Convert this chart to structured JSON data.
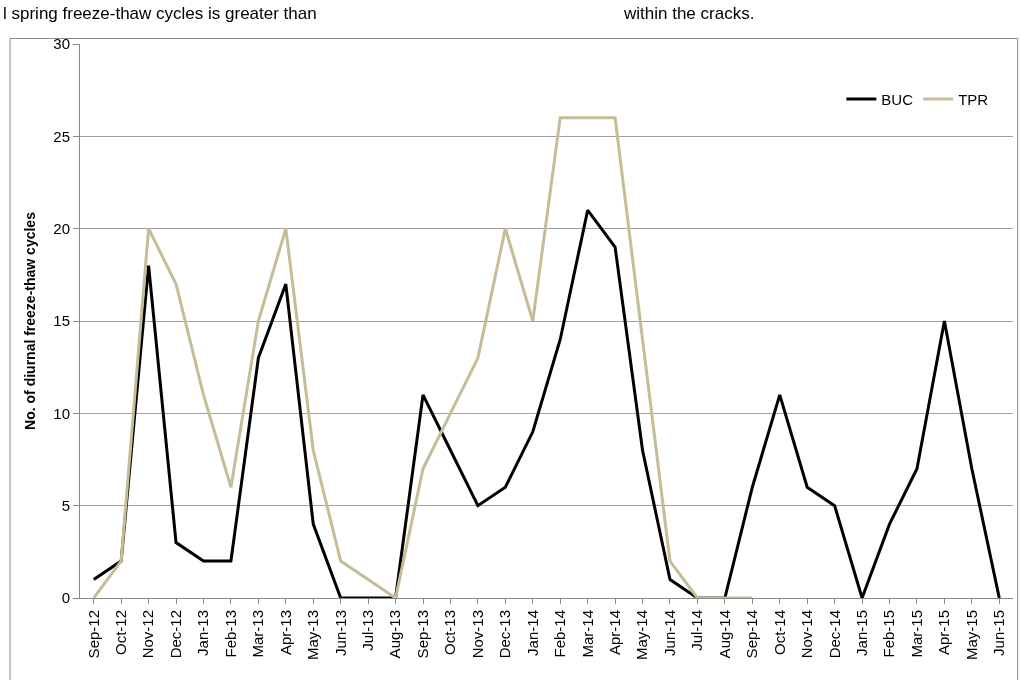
{
  "chart_data": {
    "type": "line",
    "ylabel": "No. of diurnal freeze-thaw cycles",
    "annotations": [
      "l spring freeze-thaw cycles is greater than",
      "within the cracks."
    ],
    "categories": [
      "Sep-12",
      "Oct-12",
      "Nov-12",
      "Dec-12",
      "Jan-13",
      "Feb-13",
      "Mar-13",
      "Apr-13",
      "May-13",
      "Jun-13",
      "Jul-13",
      "Aug-13",
      "Sep-13",
      "Oct-13",
      "Nov-13",
      "Dec-13",
      "Jan-14",
      "Feb-14",
      "Mar-14",
      "Apr-14",
      "May-14",
      "Jun-14",
      "Jul-14",
      "Aug-14",
      "Sep-14",
      "Oct-14",
      "Nov-14",
      "Dec-14",
      "Jan-15",
      "Feb-15",
      "Mar-15",
      "Apr-15",
      "May-15",
      "Jun-15"
    ],
    "series": [
      {
        "name": "BUC",
        "color": "#000000",
        "values": [
          1,
          2,
          18,
          3,
          2,
          2,
          13,
          17,
          4,
          0,
          0,
          0,
          11,
          8,
          5,
          6,
          9,
          14,
          21,
          19,
          8,
          1,
          0,
          0,
          6,
          11,
          6,
          5,
          0,
          4,
          7,
          15,
          7,
          0
        ]
      },
      {
        "name": "TPR",
        "color": "#c4bd97",
        "values": [
          0,
          2,
          20,
          17,
          11,
          6,
          15,
          20,
          8,
          2,
          1,
          0,
          7,
          10,
          13,
          20,
          15,
          26,
          26,
          26,
          14,
          2,
          0,
          0,
          0,
          null,
          null,
          null,
          null,
          null,
          null,
          null,
          null,
          null
        ]
      }
    ],
    "ylim": [
      0,
      30
    ],
    "yticks": [
      0,
      5,
      10,
      15,
      20,
      25,
      30
    ],
    "grid": "y",
    "legend": "top right",
    "marker": "none",
    "line_style": "solid"
  }
}
